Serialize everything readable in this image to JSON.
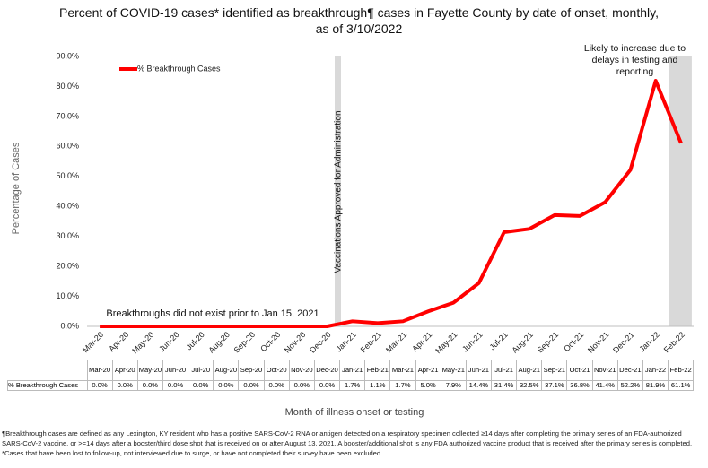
{
  "chart_data": {
    "type": "line",
    "title": "Percent of COVID-19 cases* identified as breakthrough¶ cases in Fayette County by date of onset, monthly, as of 3/10/2022",
    "y_label": "Percentage of Cases",
    "x_label": "Month of illness onset or testing",
    "categories": [
      "Mar-20",
      "Apr-20",
      "May-20",
      "Jun-20",
      "Jul-20",
      "Aug-20",
      "Sep-20",
      "Oct-20",
      "Nov-20",
      "Dec-20",
      "Jan-21",
      "Feb-21",
      "Mar-21",
      "Apr-21",
      "May-21",
      "Jun-21",
      "Jul-21",
      "Aug-21",
      "Sep-21",
      "Oct-21",
      "Nov-21",
      "Dec-21",
      "Jan-22",
      "Feb-22"
    ],
    "series": [
      {
        "name": "% Breakthrough Cases",
        "color": "#ff0000",
        "values": [
          0,
          0,
          0,
          0,
          0,
          0,
          0,
          0,
          0,
          0,
          1.7,
          1.1,
          1.7,
          5.0,
          7.9,
          14.4,
          31.4,
          32.5,
          37.1,
          36.8,
          41.4,
          52.2,
          81.9,
          61.1
        ],
        "value_labels": [
          "0.0%",
          "0.0%",
          "0.0%",
          "0.0%",
          "0.0%",
          "0.0%",
          "0.0%",
          "0.0%",
          "0.0%",
          "0.0%",
          "1.7%",
          "1.1%",
          "1.7%",
          "5.0%",
          "7.9%",
          "14.4%",
          "31.4%",
          "32.5%",
          "37.1%",
          "36.8%",
          "41.4%",
          "52.2%",
          "81.9%",
          "61.1%"
        ]
      }
    ],
    "ylim": [
      0,
      90
    ],
    "yticks": [
      {
        "value": 0,
        "label": "0.0%"
      },
      {
        "value": 10,
        "label": "10.0%"
      },
      {
        "value": 20,
        "label": "20.0%"
      },
      {
        "value": 30,
        "label": "30.0%"
      },
      {
        "value": 40,
        "label": "40.0%"
      },
      {
        "value": 50,
        "label": "50.0%"
      },
      {
        "value": 60,
        "label": "60.0%"
      },
      {
        "value": 70,
        "label": "70.0%"
      },
      {
        "value": 80,
        "label": "80.0%"
      },
      {
        "value": 90,
        "label": "90.0%"
      }
    ],
    "annotations": [
      "Vaccinations Approved for Administration",
      "Likely to increase due to delays in testing and reporting",
      "Breakthroughs did not exist prior to Jan 15, 2021"
    ],
    "footnote": "¶Breakthrough cases are defined as any Lexington, KY resident who has a positive SARS-CoV-2 RNA or antigen detected on a respiratory specimen collected ≥14 days after completing the primary series of an FDA-authorized SARS-CoV-2 vaccine, or >=14 days after a booster/third dose shot that is received on or after August 13, 2021.  A booster/additional shot is any FDA authorized vaccine product that is received after the primary series is completed. *Cases that have been lost to follow-up, not interviewed due to surge, or have not completed their survey have been excluded."
  }
}
